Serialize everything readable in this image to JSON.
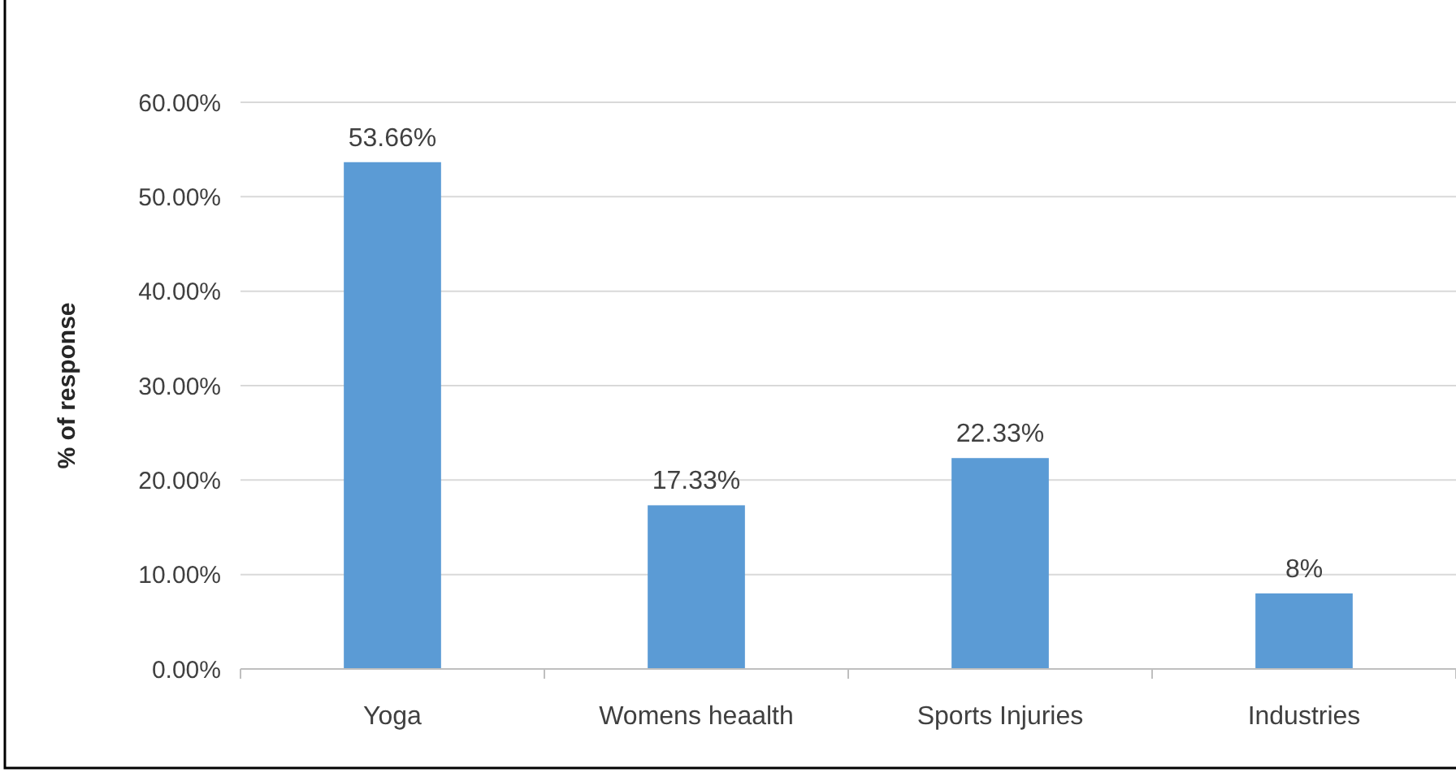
{
  "chart_data": {
    "type": "bar",
    "ylabel": "% of response",
    "categories": [
      "Yoga",
      "Womens heaalth",
      "Sports Injuries",
      "Industries"
    ],
    "values": [
      53.66,
      17.33,
      22.33,
      8
    ],
    "value_labels": [
      "53.66%",
      "17.33%",
      "22.33%",
      "8%"
    ],
    "color": "#5b9bd5",
    "ylim": [
      0,
      60
    ],
    "yticks": [
      {
        "value": 0,
        "label": "0.00%"
      },
      {
        "value": 10,
        "label": "10.00%"
      },
      {
        "value": 20,
        "label": "20.00%"
      },
      {
        "value": 30,
        "label": "30.00%"
      },
      {
        "value": 40,
        "label": "40.00%"
      },
      {
        "value": 50,
        "label": "50.00%"
      },
      {
        "value": 60,
        "label": "60.00%"
      }
    ],
    "grid": "y"
  }
}
